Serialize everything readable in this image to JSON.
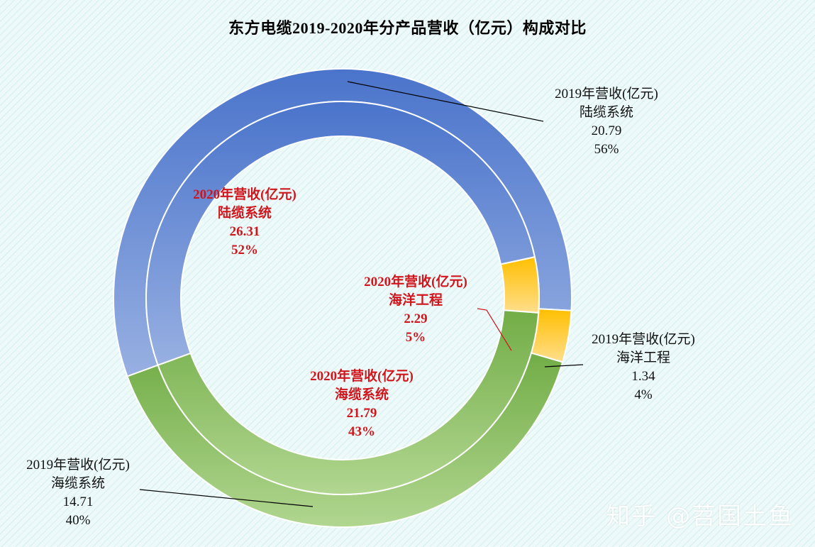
{
  "title": "东方电缆2019-2020年分产品营收（亿元）构成对比",
  "watermark": "知乎 @苕国土鱼",
  "colors": {
    "land": "#4a74cb",
    "land_light": "#98b0e2",
    "sea": "#72ad47",
    "sea_light": "#b1d690",
    "ocean": "#ffbf00",
    "ocean_light": "#ffde8c"
  },
  "chart_data": {
    "type": "pie",
    "title": "东方电缆2019-2020年分产品营收（亿元）构成对比",
    "style": "doughnut, two concentric rings",
    "categories": [
      "陆缆系统",
      "海洋工程",
      "海缆系统"
    ],
    "series": [
      {
        "name": "2019年营收(亿元)",
        "ring": "outer",
        "values": [
          20.79,
          1.34,
          14.71
        ],
        "percents": [
          "56%",
          "4%",
          "40%"
        ],
        "labels": [
          {
            "series": "2019年营收(亿元)",
            "category": "陆缆系统",
            "value": "20.79",
            "percent": "56%"
          },
          {
            "series": "2019年营收(亿元)",
            "category": "海洋工程",
            "value": "1.34",
            "percent": "4%"
          },
          {
            "series": "2019年营收(亿元)",
            "category": "海缆系统",
            "value": "14.71",
            "percent": "40%"
          }
        ]
      },
      {
        "name": "2020年营收(亿元)",
        "ring": "inner",
        "values": [
          26.31,
          2.29,
          21.79
        ],
        "percents": [
          "52%",
          "5%",
          "43%"
        ],
        "labels": [
          {
            "series": "2020年营收(亿元)",
            "category": "陆缆系统",
            "value": "26.31",
            "percent": "52%"
          },
          {
            "series": "2020年营收(亿元)",
            "category": "海洋工程",
            "value": "2.29",
            "percent": "5%"
          },
          {
            "series": "2020年营收(亿元)",
            "category": "海缆系统",
            "value": "21.79",
            "percent": "43%"
          }
        ]
      }
    ],
    "legend": "none"
  }
}
